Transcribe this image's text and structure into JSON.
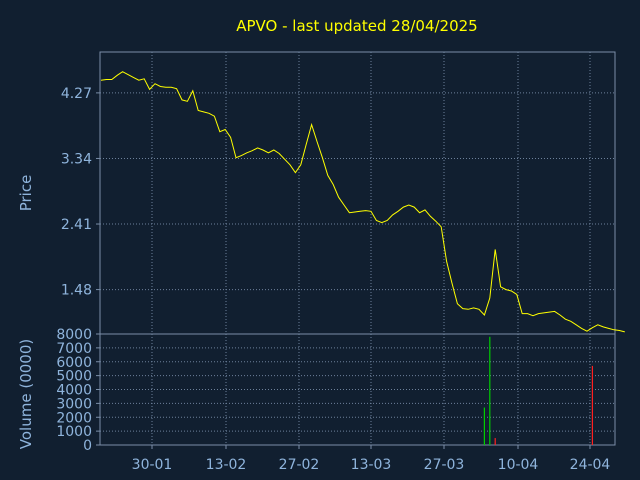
{
  "chart_data": [
    {
      "type": "line",
      "title": "APVO - last updated 28/04/2025",
      "ylabel": "Price",
      "y_ticks": [
        "4.27",
        "3.34",
        "2.41",
        "1.48"
      ],
      "ylim": [
        0.85,
        4.85
      ],
      "x_ticks": [
        "30-01",
        "13-02",
        "27-02",
        "13-03",
        "27-03",
        "10-04",
        "24-04"
      ],
      "grid": true,
      "line_color": "#ffff00",
      "series": [
        {
          "values": [
            4.45,
            4.46,
            4.46,
            4.52,
            4.57,
            4.53,
            4.49,
            4.45,
            4.47,
            4.32,
            4.4,
            4.36,
            4.35,
            4.35,
            4.33,
            4.17,
            4.15,
            4.3,
            4.02,
            4.0,
            3.98,
            3.94,
            3.72,
            3.75,
            3.64,
            3.35,
            3.38,
            3.42,
            3.45,
            3.49,
            3.46,
            3.42,
            3.46,
            3.41,
            3.33,
            3.25,
            3.14,
            3.25,
            3.54,
            3.82,
            3.58,
            3.35,
            3.1,
            2.97,
            2.79,
            2.68,
            2.57,
            2.58,
            2.59,
            2.6,
            2.59,
            2.46,
            2.43,
            2.46,
            2.54,
            2.59,
            2.65,
            2.68,
            2.65,
            2.57,
            2.61,
            2.52,
            2.45,
            2.37,
            1.88,
            1.57,
            1.28,
            1.21,
            1.2,
            1.22,
            1.2,
            1.12,
            1.36,
            2.05,
            1.52,
            1.48,
            1.46,
            1.41,
            1.14,
            1.14,
            1.11,
            1.14,
            1.15,
            1.16,
            1.17,
            1.12,
            1.06,
            1.03,
            0.98,
            0.93,
            0.89,
            0.94,
            0.98,
            0.95,
            0.93,
            0.91,
            0.9,
            0.88
          ]
        }
      ]
    },
    {
      "type": "bar",
      "ylabel": "Volume (0000)",
      "y_ticks": [
        "8000",
        "7000",
        "6000",
        "5000",
        "4000",
        "3000",
        "2000",
        "1000",
        "0"
      ],
      "ylim": [
        0,
        8000
      ],
      "x_ticks": [
        "30-01",
        "13-02",
        "27-02",
        "13-03",
        "27-03",
        "10-04",
        "24-04"
      ],
      "grid": true,
      "series": [
        {
          "name": "",
          "bars": [
            {
              "index": 71,
              "value": 2700,
              "color": "#00cc00"
            },
            {
              "index": 72,
              "value": 7800,
              "color": "#00cc00"
            },
            {
              "index": 73,
              "value": 500,
              "color": "#ff2020"
            },
            {
              "index": 91,
              "value": 5700,
              "color": "#ff2020"
            }
          ]
        }
      ]
    }
  ]
}
